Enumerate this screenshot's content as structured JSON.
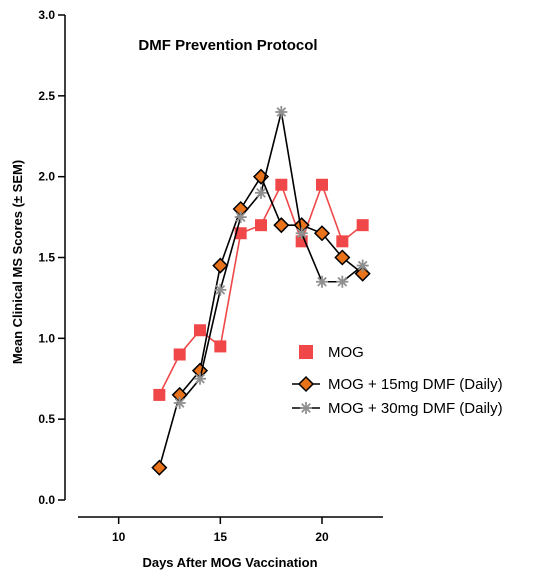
{
  "chart_data": {
    "type": "line",
    "title": "DMF Prevention Protocol",
    "xlabel": "Days After MOG Vaccination",
    "ylabel": "Mean Clinical MS Scores (± SEM)",
    "xlim": [
      8,
      23
    ],
    "ylim": [
      0,
      3.0
    ],
    "xticks": [
      10,
      15,
      20
    ],
    "yticks": [
      0.0,
      0.5,
      1.0,
      1.5,
      2.0,
      2.5,
      3.0
    ],
    "ytick_labels": [
      "0.0",
      "0.5",
      "1.0",
      "1.5",
      "2.0",
      "2.5",
      "3.0"
    ],
    "xtick_labels": [
      "10",
      "15",
      "20"
    ],
    "grid": false,
    "legend_position": "right",
    "series": [
      {
        "name": "MOG",
        "color": "#f04848",
        "marker": "square",
        "x": [
          12,
          13,
          14,
          15,
          16,
          17,
          18,
          19,
          20,
          21,
          22
        ],
        "y": [
          0.65,
          0.9,
          1.05,
          0.95,
          1.65,
          1.7,
          1.95,
          1.6,
          1.95,
          1.6,
          1.7
        ]
      },
      {
        "name": "MOG + 15mg DMF (Daily)",
        "color": "#000000",
        "marker_fill": "#e8731a",
        "marker": "diamond",
        "x": [
          12,
          13,
          14,
          15,
          16,
          17,
          18,
          19,
          20,
          21,
          22
        ],
        "y": [
          0.2,
          0.65,
          0.8,
          1.45,
          1.8,
          2.0,
          1.7,
          1.7,
          1.65,
          1.5,
          1.4
        ]
      },
      {
        "name": "MOG + 30mg DMF (Daily)",
        "color": "#000000",
        "marker_color": "#909090",
        "marker": "asterisk",
        "x": [
          13,
          14,
          15,
          16,
          17,
          18,
          19,
          20,
          21,
          22
        ],
        "y": [
          0.6,
          0.75,
          1.3,
          1.75,
          1.9,
          2.4,
          1.65,
          1.35,
          1.35,
          1.45
        ]
      }
    ]
  }
}
